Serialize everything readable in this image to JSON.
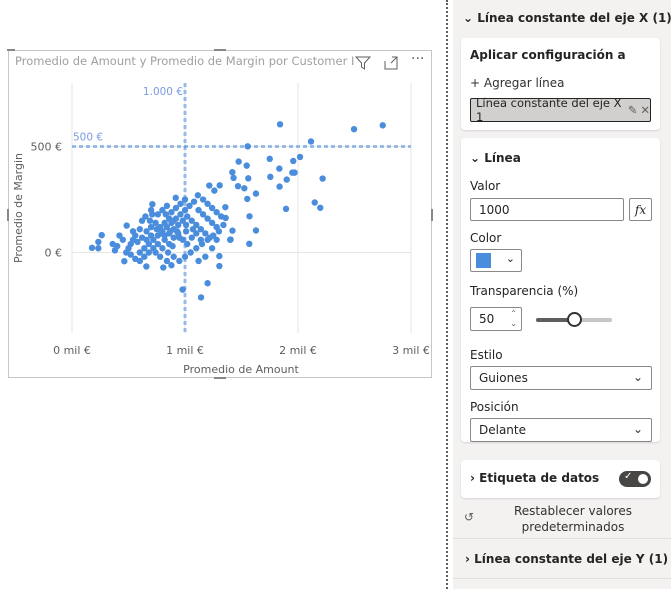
{
  "visual": {
    "title": "Promedio de Amount y Promedio de Margin por Customer Id",
    "icons": [
      "filter-icon",
      "focus-mode-icon",
      "more-options-icon"
    ]
  },
  "chart_data": {
    "type": "scatter",
    "title": "Promedio de Amount y Promedio de Margin por Customer Id",
    "xlabel": "Promedio de Amount",
    "ylabel": "Promedio de Margin",
    "xlim": [
      0,
      3000
    ],
    "ylim": [
      -380,
      800
    ],
    "xticks": [
      {
        "v": 0,
        "label": "0 mil €"
      },
      {
        "v": 1000,
        "label": "1 mil €"
      },
      {
        "v": 2000,
        "label": "2 mil €"
      },
      {
        "v": 3000,
        "label": "3 mil €"
      }
    ],
    "yticks": [
      {
        "v": 0,
        "label": "0 €"
      },
      {
        "v": 500,
        "label": "500 €"
      }
    ],
    "grid": true,
    "color": "#4a8ddc",
    "reference_lines": [
      {
        "axis": "x",
        "value": 1000,
        "label": "1.000 €",
        "style": "dashed"
      },
      {
        "axis": "y",
        "value": 500,
        "label": "500 €",
        "style": "dashed"
      }
    ],
    "points": [
      [
        1841,
        605
      ],
      [
        2496,
        582
      ],
      [
        2750,
        600
      ],
      [
        2115,
        524
      ],
      [
        1555,
        501
      ],
      [
        1750,
        442
      ],
      [
        2018,
        451
      ],
      [
        1958,
        432
      ],
      [
        1475,
        429
      ],
      [
        1546,
        410
      ],
      [
        1835,
        396
      ],
      [
        1419,
        379
      ],
      [
        1970,
        377
      ],
      [
        1950,
        377
      ],
      [
        1755,
        357
      ],
      [
        1430,
        352
      ],
      [
        1560,
        350
      ],
      [
        1900,
        344
      ],
      [
        2218,
        349
      ],
      [
        1837,
        311
      ],
      [
        1469,
        313
      ],
      [
        1525,
        303
      ],
      [
        1307,
        317
      ],
      [
        1215,
        316
      ],
      [
        1260,
        292
      ],
      [
        1628,
        278
      ],
      [
        1551,
        253
      ],
      [
        2148,
        236
      ],
      [
        2197,
        211
      ],
      [
        1894,
        206
      ],
      [
        1571,
        171
      ],
      [
        1628,
        104
      ],
      [
        1569,
        41
      ],
      [
        1403,
        61
      ],
      [
        1304,
        -17
      ],
      [
        1304,
        -64
      ],
      [
        1200,
        -145
      ],
      [
        1142,
        -212
      ],
      [
        979,
        -175
      ],
      [
        808,
        -71
      ],
      [
        658,
        -66
      ],
      [
        463,
        -41
      ],
      [
        177,
        22
      ],
      [
        233,
        50
      ],
      [
        263,
        82
      ],
      [
        233,
        20
      ],
      [
        484,
        127
      ],
      [
        711,
        228
      ],
      [
        918,
        258
      ],
      [
        1000,
        250
      ],
      [
        1114,
        270
      ],
      [
        1357,
        214
      ],
      [
        1360,
        163
      ],
      [
        1420,
        103
      ],
      [
        1400,
        60
      ],
      [
        700,
        200
      ],
      [
        650,
        170
      ],
      [
        620,
        150
      ],
      [
        600,
        110
      ],
      [
        560,
        80
      ],
      [
        540,
        60
      ],
      [
        520,
        40
      ],
      [
        500,
        20
      ],
      [
        480,
        0
      ],
      [
        450,
        60
      ],
      [
        420,
        80
      ],
      [
        400,
        30
      ],
      [
        380,
        10
      ],
      [
        360,
        40
      ],
      [
        520,
        -10
      ],
      [
        560,
        -30
      ],
      [
        600,
        0
      ],
      [
        640,
        20
      ],
      [
        680,
        40
      ],
      [
        720,
        60
      ],
      [
        760,
        80
      ],
      [
        800,
        100
      ],
      [
        840,
        120
      ],
      [
        880,
        140
      ],
      [
        920,
        160
      ],
      [
        960,
        180
      ],
      [
        1000,
        200
      ],
      [
        1040,
        220
      ],
      [
        1080,
        240
      ],
      [
        1120,
        200
      ],
      [
        1160,
        180
      ],
      [
        1200,
        160
      ],
      [
        1240,
        140
      ],
      [
        1280,
        120
      ],
      [
        1300,
        100
      ],
      [
        1250,
        80
      ],
      [
        1200,
        60
      ],
      [
        1150,
        40
      ],
      [
        1100,
        20
      ],
      [
        1050,
        0
      ],
      [
        1000,
        -20
      ],
      [
        950,
        -40
      ],
      [
        900,
        -20
      ],
      [
        850,
        0
      ],
      [
        800,
        20
      ],
      [
        760,
        40
      ],
      [
        720,
        20
      ],
      [
        680,
        0
      ],
      [
        640,
        -20
      ],
      [
        600,
        -40
      ],
      [
        780,
        120
      ],
      [
        820,
        140
      ],
      [
        860,
        90
      ],
      [
        900,
        110
      ],
      [
        940,
        130
      ],
      [
        980,
        150
      ],
      [
        1020,
        170
      ],
      [
        1060,
        150
      ],
      [
        1100,
        130
      ],
      [
        1140,
        110
      ],
      [
        1180,
        90
      ],
      [
        1220,
        70
      ],
      [
        700,
        120
      ],
      [
        740,
        140
      ],
      [
        660,
        100
      ],
      [
        620,
        70
      ],
      [
        580,
        50
      ],
      [
        540,
        100
      ],
      [
        820,
        60
      ],
      [
        860,
        40
      ],
      [
        900,
        70
      ],
      [
        940,
        90
      ],
      [
        980,
        60
      ],
      [
        1020,
        40
      ],
      [
        1060,
        70
      ],
      [
        1100,
        90
      ],
      [
        1140,
        60
      ],
      [
        760,
        180
      ],
      [
        800,
        200
      ],
      [
        840,
        220
      ],
      [
        880,
        190
      ],
      [
        920,
        210
      ],
      [
        960,
        230
      ],
      [
        1160,
        250
      ],
      [
        1200,
        230
      ],
      [
        1240,
        210
      ],
      [
        1280,
        190
      ],
      [
        1320,
        170
      ],
      [
        1340,
        130
      ],
      [
        1280,
        60
      ],
      [
        1240,
        20
      ],
      [
        1180,
        -20
      ],
      [
        1120,
        -40
      ],
      [
        880,
        -60
      ],
      [
        840,
        -40
      ],
      [
        780,
        -20
      ],
      [
        740,
        0
      ],
      [
        700,
        80
      ],
      [
        660,
        60
      ],
      [
        860,
        160
      ],
      [
        900,
        150
      ],
      [
        820,
        80
      ],
      [
        870,
        100
      ],
      [
        930,
        100
      ],
      [
        790,
        90
      ],
      [
        750,
        110
      ],
      [
        950,
        70
      ],
      [
        890,
        30
      ],
      [
        1010,
        100
      ],
      [
        1070,
        110
      ],
      [
        690,
        150
      ],
      [
        710,
        180
      ],
      [
        830,
        180
      ],
      [
        1010,
        130
      ]
    ]
  },
  "panel": {
    "section_title": "Línea constante del eje X (1)",
    "apply_label": "Aplicar configuración a",
    "add_line": "+ Agregar línea",
    "selected_line": "Línea constante del eje X 1",
    "line_section": "Línea",
    "value_label": "Valor",
    "value": "1000",
    "fx_label": "fx",
    "color_label": "Color",
    "color": "#4a8ddc",
    "transparency_label": "Transparencia (%)",
    "transparency": 50,
    "style_label": "Estilo",
    "style_value": "Guiones",
    "position_label": "Posición",
    "position_value": "Delante",
    "data_label_section": "Etiqueta de datos",
    "data_label_on": true,
    "reset_label_1": "Restablecer valores",
    "reset_label_2": "predeterminados",
    "y_section_title": "Línea constante del eje Y (1)"
  }
}
